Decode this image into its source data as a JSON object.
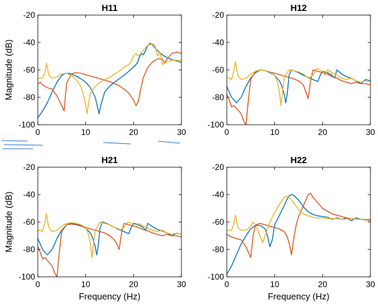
{
  "colors": {
    "blue": "#0072BD",
    "orange": "#D95319",
    "yellow": "#EDB120",
    "artifact": "#3b78d8"
  },
  "chart_data": [
    {
      "type": "line",
      "title": "H11",
      "xlabel": "",
      "ylabel": "Magnitude (dB)",
      "xlim": [
        0,
        30
      ],
      "ylim": [
        -100,
        -20
      ],
      "xticks": [
        0,
        10,
        20,
        30
      ],
      "yticks": [
        -100,
        -80,
        -60,
        -40,
        -20
      ],
      "grid": false,
      "series": [
        {
          "color": "blue",
          "x": [
            0,
            1,
            2,
            3,
            4,
            5,
            5.5,
            6,
            6.5,
            7,
            8,
            9,
            10,
            11,
            12,
            12.4,
            12.8,
            13.2,
            14,
            15,
            16,
            17,
            18,
            19,
            20,
            20.8,
            21.2,
            21.6,
            22,
            22.5,
            23,
            23.5,
            24,
            25,
            26,
            27,
            28,
            29,
            30
          ],
          "y": [
            -95,
            -90,
            -84,
            -76,
            -69,
            -64,
            -63,
            -62.5,
            -62.5,
            -63,
            -64.5,
            -66.5,
            -69,
            -73,
            -80,
            -86,
            -92,
            -85,
            -76,
            -72,
            -69,
            -66.5,
            -64,
            -61,
            -58,
            -55,
            -51,
            -48,
            -49,
            -46,
            -42,
            -40.5,
            -42,
            -46,
            -49,
            -51,
            -52.5,
            -53.5,
            -54.5
          ]
        },
        {
          "color": "orange",
          "x": [
            0,
            0.5,
            1,
            2,
            3,
            4,
            5,
            5.5,
            6,
            7,
            8,
            9,
            10,
            11,
            12,
            13,
            14,
            15,
            16,
            17,
            18,
            19,
            20,
            20.5,
            21,
            21.5,
            22,
            23,
            24,
            25,
            26,
            26.5,
            27,
            28,
            29,
            30
          ],
          "y": [
            -70,
            -69,
            -71,
            -73,
            -74,
            -79,
            -86,
            -90,
            -70,
            -63,
            -62,
            -62.5,
            -63.5,
            -64.5,
            -65.5,
            -66.5,
            -67.5,
            -68.5,
            -70,
            -71.5,
            -74,
            -77,
            -82,
            -86,
            -83,
            -74,
            -66,
            -58,
            -54,
            -52,
            -52,
            -55,
            -52,
            -48,
            -47,
            -48
          ]
        },
        {
          "color": "yellow",
          "x": [
            0,
            0.5,
            1,
            1.5,
            1.8,
            2,
            2.3,
            3,
            4,
            5,
            6,
            7,
            8,
            9,
            9.5,
            10,
            10.3,
            10.6,
            11,
            12,
            13,
            14,
            15,
            16,
            17,
            18,
            19,
            19.5,
            20,
            20.5,
            21,
            22,
            23,
            24,
            24.5,
            25,
            25.5,
            26,
            27,
            28,
            29,
            30
          ],
          "y": [
            -66,
            -66,
            -66,
            -62,
            -55,
            -58,
            -64,
            -66,
            -65,
            -63,
            -62.5,
            -64,
            -67,
            -72,
            -78,
            -86,
            -92,
            -84,
            -77,
            -72,
            -69,
            -67,
            -65.5,
            -63,
            -61,
            -58,
            -56,
            -54,
            -50,
            -48,
            -50,
            -46,
            -42,
            -41,
            -42,
            -50,
            -47,
            -56,
            -54,
            -53,
            -53,
            -53
          ]
        }
      ]
    },
    {
      "type": "line",
      "title": "H12",
      "xlabel": "",
      "ylabel": "",
      "xlim": [
        0,
        30
      ],
      "ylim": [
        -100,
        -20
      ],
      "xticks": [
        0,
        10,
        20,
        30
      ],
      "yticks": [
        -100,
        -80,
        -60,
        -40,
        -20
      ],
      "grid": false,
      "series": [
        {
          "color": "blue",
          "x": [
            0,
            0.5,
            1,
            2,
            3,
            4,
            5,
            6,
            7,
            8,
            9,
            10,
            11,
            11.5,
            12,
            12.3,
            12.6,
            13,
            13.5,
            14,
            15,
            16,
            17,
            18,
            19,
            19.5,
            20,
            21,
            22,
            22.5,
            23,
            24,
            25,
            26,
            27,
            28,
            29,
            30
          ],
          "y": [
            -72,
            -76,
            -80,
            -84,
            -80,
            -72,
            -66,
            -62,
            -60,
            -60.5,
            -62,
            -64,
            -68,
            -72,
            -78,
            -84,
            -78,
            -64,
            -60,
            -60.5,
            -62,
            -64,
            -65.5,
            -67,
            -68.5,
            -64,
            -61,
            -62,
            -64,
            -66,
            -60,
            -63,
            -65,
            -66,
            -68,
            -70,
            -67,
            -68
          ]
        },
        {
          "color": "orange",
          "x": [
            0,
            0.5,
            1,
            1.5,
            2,
            3,
            3.5,
            4,
            4.5,
            5,
            6,
            7,
            8,
            9,
            10,
            11,
            12,
            13,
            14,
            15,
            16,
            16.5,
            17,
            17.5,
            18,
            19,
            20,
            21,
            22,
            23,
            24,
            25,
            26,
            27,
            28,
            29,
            30
          ],
          "y": [
            -78,
            -82,
            -87,
            -86,
            -88,
            -92,
            -97,
            -100,
            -82,
            -67,
            -61,
            -60,
            -60.5,
            -61.5,
            -62.5,
            -63.5,
            -64.5,
            -65.5,
            -66.5,
            -68,
            -71,
            -76,
            -81,
            -68,
            -60,
            -61,
            -62,
            -63,
            -65,
            -66,
            -68,
            -69,
            -70,
            -69,
            -70,
            -70,
            -71
          ]
        },
        {
          "color": "yellow",
          "x": [
            0,
            0.5,
            1,
            1.5,
            1.8,
            2,
            2.3,
            3,
            4,
            5,
            6,
            7,
            8,
            9,
            10,
            10.5,
            11,
            11.3,
            11.6,
            12,
            13,
            14,
            15,
            16,
            17,
            18,
            18.5,
            19,
            20,
            20.5,
            21,
            22,
            23,
            24,
            25,
            26,
            27,
            28,
            29,
            30
          ],
          "y": [
            -66,
            -66,
            -67,
            -60,
            -54,
            -58,
            -64,
            -67,
            -66,
            -63,
            -61,
            -60,
            -60.5,
            -61.5,
            -64,
            -68,
            -76,
            -86,
            -77,
            -65,
            -60,
            -60.5,
            -61.5,
            -63,
            -66,
            -64,
            -60,
            -59,
            -61,
            -64,
            -60,
            -62,
            -64,
            -66,
            -67,
            -66,
            -68,
            -69,
            -68,
            -69
          ]
        }
      ]
    },
    {
      "type": "line",
      "title": "H21",
      "xlabel": "Frequency (Hz)",
      "ylabel": "Magnitude (dB)",
      "xlim": [
        0,
        30
      ],
      "ylim": [
        -100,
        -20
      ],
      "xticks": [
        0,
        10,
        20,
        30
      ],
      "yticks": [
        -100,
        -80,
        -60,
        -40,
        -20
      ],
      "grid": false,
      "series": [
        {
          "color": "blue",
          "x": [
            0,
            0.5,
            1,
            2,
            3,
            4,
            5,
            6,
            7,
            8,
            9,
            10,
            11,
            11.5,
            12,
            12.3,
            12.6,
            13,
            13.5,
            14,
            15,
            16,
            17,
            18,
            19,
            19.5,
            20,
            21,
            22,
            22.5,
            23,
            24,
            25,
            26,
            27,
            28,
            29,
            30
          ],
          "y": [
            -72,
            -76,
            -80,
            -84,
            -80,
            -72,
            -66,
            -62,
            -61,
            -61.5,
            -62.5,
            -64.5,
            -68,
            -72,
            -78,
            -84,
            -78,
            -64,
            -60,
            -60.5,
            -62,
            -64,
            -65.5,
            -67,
            -68.5,
            -64,
            -61,
            -62,
            -64,
            -66,
            -61,
            -63.5,
            -65.5,
            -66.5,
            -68,
            -70,
            -68,
            -69
          ]
        },
        {
          "color": "orange",
          "x": [
            0,
            0.5,
            1,
            1.5,
            2,
            3,
            3.5,
            4,
            4.5,
            5,
            6,
            7,
            8,
            9,
            10,
            11,
            12,
            13,
            14,
            15,
            16,
            16.5,
            17,
            17.5,
            18,
            19,
            20,
            21,
            22,
            23,
            24,
            25,
            26,
            27,
            28,
            29,
            30
          ],
          "y": [
            -78,
            -82,
            -87,
            -86,
            -88,
            -92,
            -97,
            -100,
            -82,
            -67,
            -62,
            -61.5,
            -62,
            -63,
            -64,
            -65,
            -66,
            -67,
            -68,
            -70,
            -73,
            -76,
            -80,
            -68,
            -61,
            -62,
            -63,
            -64,
            -65.5,
            -66.5,
            -68,
            -69,
            -70,
            -69,
            -70,
            -70,
            -71
          ]
        },
        {
          "color": "yellow",
          "x": [
            0,
            0.5,
            1,
            1.5,
            1.8,
            2,
            2.3,
            3,
            4,
            5,
            6,
            7,
            8,
            9,
            10,
            10.5,
            11,
            11.3,
            11.6,
            12,
            13,
            14,
            15,
            16,
            17,
            18,
            18.5,
            19,
            20,
            20.5,
            21,
            22,
            23,
            24,
            25,
            26,
            27,
            28,
            29,
            30
          ],
          "y": [
            -66,
            -66,
            -67,
            -60,
            -54,
            -58,
            -64,
            -67,
            -66,
            -63,
            -61,
            -60.5,
            -61,
            -62,
            -64,
            -68,
            -76,
            -86,
            -77,
            -66,
            -60,
            -61,
            -62,
            -64,
            -66,
            -64,
            -61,
            -60,
            -62,
            -64,
            -61,
            -63,
            -64.5,
            -66,
            -67,
            -66,
            -68,
            -69,
            -68,
            -69
          ]
        }
      ]
    },
    {
      "type": "line",
      "title": "H22",
      "xlabel": "Frequency (Hz)",
      "ylabel": "",
      "xlim": [
        0,
        30
      ],
      "ylim": [
        -100,
        -20
      ],
      "xticks": [
        0,
        10,
        20,
        30
      ],
      "yticks": [
        -100,
        -80,
        -60,
        -40,
        -20
      ],
      "grid": false,
      "series": [
        {
          "color": "blue",
          "x": [
            0,
            1,
            2,
            3,
            4,
            5,
            6,
            7,
            8,
            8.5,
            9,
            9.5,
            10,
            11,
            12,
            12.5,
            13,
            13.5,
            14,
            15,
            16,
            17,
            18,
            19,
            20,
            21,
            22,
            23,
            24,
            25,
            26,
            27,
            28,
            29,
            30
          ],
          "y": [
            -98,
            -92,
            -84,
            -76,
            -70,
            -65,
            -62.5,
            -62.5,
            -65,
            -70,
            -78,
            -73,
            -62,
            -55,
            -48,
            -44,
            -41,
            -40,
            -40.5,
            -44,
            -49,
            -52.5,
            -54.5,
            -55.5,
            -56,
            -56.5,
            -58,
            -57,
            -58,
            -57,
            -59,
            -57,
            -58,
            -58,
            -59
          ]
        },
        {
          "color": "orange",
          "x": [
            0,
            0.5,
            1,
            2,
            3,
            4,
            4.5,
            5,
            5.5,
            6,
            7,
            8,
            9,
            10,
            11,
            12,
            12.5,
            13,
            13.5,
            14,
            14.5,
            15,
            16,
            16.5,
            17,
            17.5,
            18,
            19,
            20,
            21,
            22,
            23,
            24,
            25,
            26,
            27,
            28,
            29,
            30
          ],
          "y": [
            -69,
            -70,
            -71,
            -72,
            -73,
            -78,
            -82,
            -86,
            -70,
            -62,
            -61,
            -62,
            -63,
            -64,
            -65,
            -67,
            -70,
            -75,
            -84,
            -72,
            -62,
            -56,
            -48,
            -44,
            -40,
            -39,
            -42,
            -46,
            -50,
            -52,
            -54,
            -55,
            -56,
            -57,
            -57.5,
            -58,
            -58,
            -58.5,
            -58.5
          ]
        },
        {
          "color": "yellow",
          "x": [
            0,
            0.5,
            1,
            1.5,
            1.8,
            2,
            2.3,
            3,
            4,
            5,
            5.5,
            6,
            6.5,
            7,
            7.5,
            8,
            9,
            10,
            11,
            12,
            12.5,
            13,
            14,
            15,
            16,
            17,
            18,
            19,
            20,
            21,
            22,
            23,
            24,
            25,
            26,
            27,
            28,
            29,
            30
          ],
          "y": [
            -66,
            -66,
            -66,
            -61,
            -55,
            -58,
            -64,
            -66,
            -66,
            -63,
            -60,
            -62,
            -66,
            -71,
            -75,
            -70,
            -60,
            -53,
            -47,
            -42,
            -41,
            -42,
            -46,
            -51,
            -54,
            -55.5,
            -56.5,
            -57,
            -57,
            -57.5,
            -57.5,
            -57.5,
            -58,
            -58,
            -57.5,
            -58,
            -58,
            -58,
            -58
          ]
        }
      ]
    }
  ]
}
